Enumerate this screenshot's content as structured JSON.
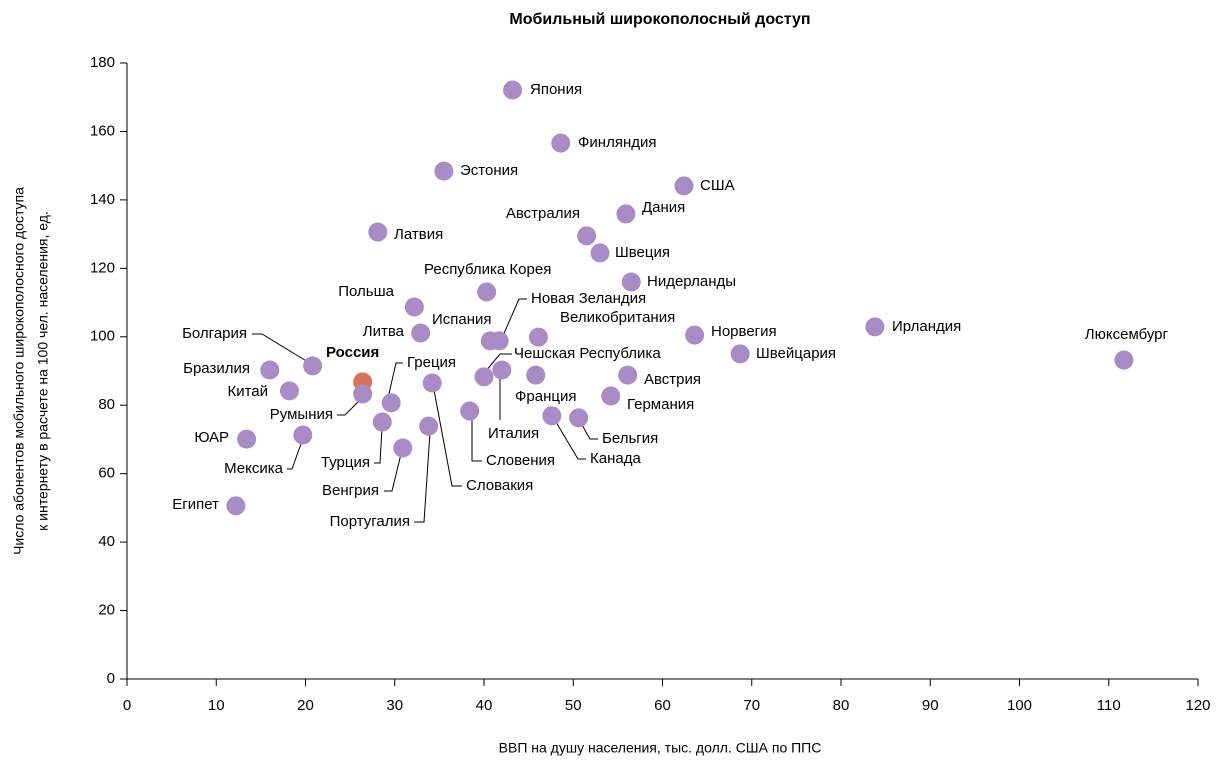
{
  "chart_data": {
    "type": "scatter",
    "title": "Мобильный широкополосный доступ",
    "xlabel": "ВВП на душу населения, тыс. долл. США по ППС",
    "ylabel": [
      "Число абонентов мобильного широкополосного  доступа",
      "к интернету в расчете на 100 чел. населения, ед."
    ],
    "xlim": [
      0,
      120
    ],
    "xticks": [
      0,
      10,
      20,
      30,
      40,
      50,
      60,
      70,
      80,
      90,
      100,
      110,
      120
    ],
    "ylim": [
      0,
      180
    ],
    "yticks": [
      0,
      20,
      40,
      60,
      80,
      100,
      120,
      140,
      160,
      180
    ],
    "labels": [
      "Япония",
      "Финляндия",
      "Эстония",
      "США",
      "Дания",
      "Австралия",
      "Латвия",
      "Швеция",
      "Нидерланды",
      "Республика Корея",
      "Польша",
      "Литва",
      "Испания",
      "Новая Зеландия",
      "Великобритания",
      "Норвегия",
      "Ирландия",
      "Швейцария",
      "Люксембург",
      "Болгария",
      "Бразилия",
      "Россия",
      "Китай",
      "Румыния",
      "Греция",
      "Чешская Республика",
      "Италия",
      "Франция",
      "Словакия",
      "Австрия",
      "Германия",
      "Словения",
      "Канада",
      "Бельгия",
      "Турция",
      "Португалия",
      "Венгрия",
      "ЮАР",
      "Мексика",
      "Египет"
    ],
    "x": [
      43.2,
      48.6,
      35.5,
      62.4,
      55.9,
      51.5,
      28.1,
      53.0,
      56.5,
      40.3,
      32.2,
      32.9,
      40.7,
      41.7,
      46.1,
      63.6,
      83.8,
      68.7,
      111.7,
      20.8,
      16.0,
      26.4,
      18.2,
      26.4,
      29.6,
      40.0,
      42.0,
      45.8,
      34.2,
      56.1,
      54.2,
      38.4,
      47.6,
      50.6,
      28.6,
      33.8,
      30.9,
      13.4,
      19.7,
      12.2
    ],
    "y": [
      172.1,
      156.6,
      148.4,
      144.1,
      135.9,
      129.5,
      130.6,
      124.5,
      116.0,
      113.1,
      108.7,
      101.1,
      98.8,
      98.8,
      99.9,
      100.5,
      102.9,
      95.0,
      93.2,
      91.5,
      90.3,
      86.8,
      84.2,
      83.3,
      80.7,
      88.3,
      90.3,
      88.8,
      86.5,
      88.8,
      82.7,
      78.3,
      76.9,
      76.3,
      75.1,
      73.9,
      67.5,
      70.1,
      71.3,
      50.6
    ],
    "colors": [
      "#a98bc6",
      "#a98bc6",
      "#a98bc6",
      "#a98bc6",
      "#a98bc6",
      "#a98bc6",
      "#a98bc6",
      "#a98bc6",
      "#a98bc6",
      "#a98bc6",
      "#a98bc6",
      "#a98bc6",
      "#a98bc6",
      "#a98bc6",
      "#a98bc6",
      "#a98bc6",
      "#a98bc6",
      "#a98bc6",
      "#a98bc6",
      "#a98bc6",
      "#a98bc6",
      "#d9735a",
      "#a98bc6",
      "#a98bc6",
      "#a98bc6",
      "#a98bc6",
      "#a98bc6",
      "#a98bc6",
      "#a98bc6",
      "#a98bc6",
      "#a98bc6",
      "#a98bc6",
      "#a98bc6",
      "#a98bc6",
      "#a98bc6",
      "#a98bc6",
      "#a98bc6",
      "#a98bc6",
      "#a98bc6",
      "#a98bc6"
    ]
  }
}
